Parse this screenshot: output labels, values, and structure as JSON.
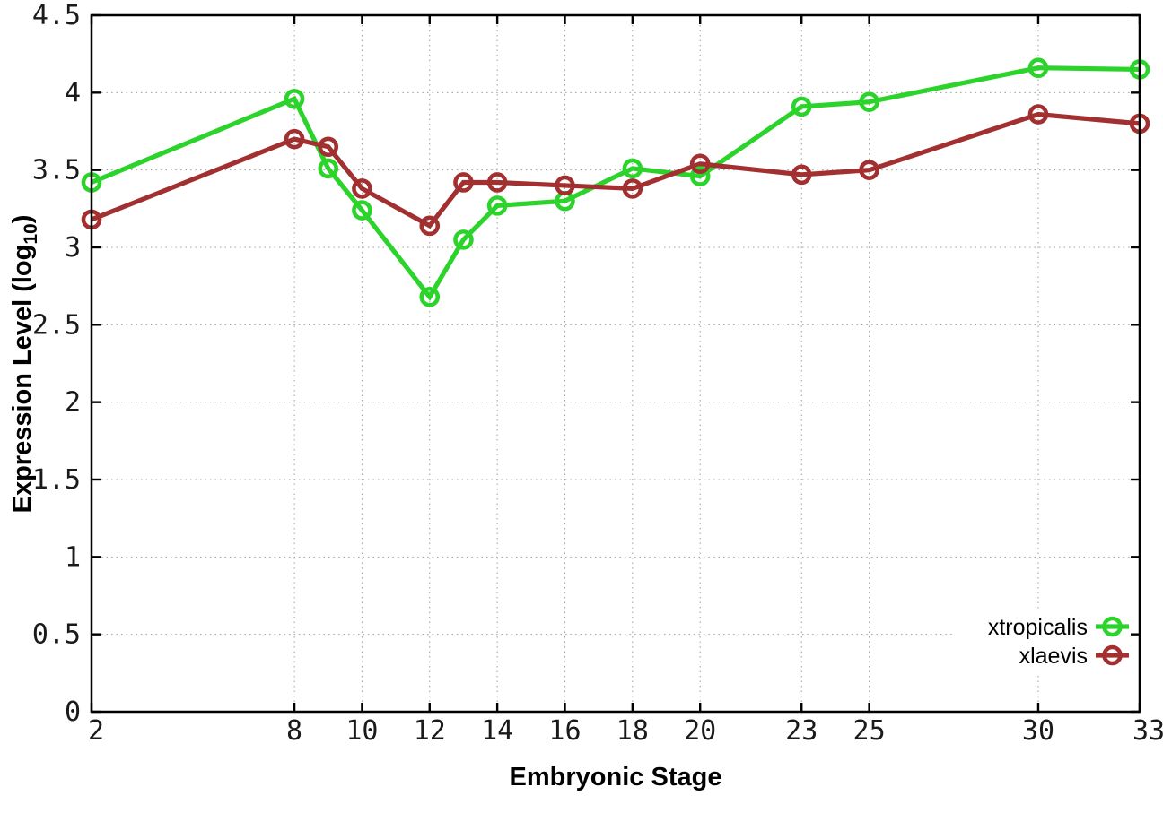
{
  "chart_data": {
    "type": "line",
    "title": "",
    "xlabel": "Embryonic Stage",
    "ylabel": "Expression Level (log10)",
    "ylabel_parts": {
      "prefix": "Expression Level (log",
      "sub": "10",
      "suffix": ")"
    },
    "xlim": [
      2,
      33
    ],
    "ylim": [
      0,
      4.5
    ],
    "grid": true,
    "legend_position": "bottom-right",
    "x": [
      2,
      8,
      9,
      10,
      12,
      13,
      14,
      16,
      18,
      20,
      23,
      25,
      30,
      33
    ],
    "xticks": [
      2,
      8,
      10,
      12,
      14,
      16,
      18,
      20,
      23,
      25,
      30,
      33
    ],
    "xtick_labels": [
      "2",
      "8",
      "10",
      "12",
      "14",
      "16",
      "18",
      "20",
      "23",
      "25",
      "30",
      "33"
    ],
    "yticks": [
      0,
      0.5,
      1,
      1.5,
      2,
      2.5,
      3,
      3.5,
      4,
      4.5
    ],
    "ytick_labels": [
      "0",
      "0.5",
      "1",
      "1.5",
      "2",
      "2.5",
      "3",
      "3.5",
      "4",
      "4.5"
    ],
    "series": [
      {
        "name": "xtropicalis",
        "color": "#2bd32b",
        "marker": "open-circle",
        "values": [
          3.42,
          3.96,
          3.51,
          3.24,
          2.68,
          3.05,
          3.27,
          3.3,
          3.51,
          3.46,
          3.91,
          3.94,
          4.16,
          4.15
        ]
      },
      {
        "name": "xlaevis",
        "color": "#a23030",
        "marker": "open-circle",
        "values": [
          3.18,
          3.7,
          3.65,
          3.38,
          3.14,
          3.42,
          3.42,
          3.4,
          3.38,
          3.54,
          3.47,
          3.5,
          3.86,
          3.8
        ]
      }
    ],
    "colors": {
      "background": "#ffffff",
      "axis": "#000000",
      "grid": "#9e9e9e",
      "tick_text": "#1a1a1a"
    }
  }
}
